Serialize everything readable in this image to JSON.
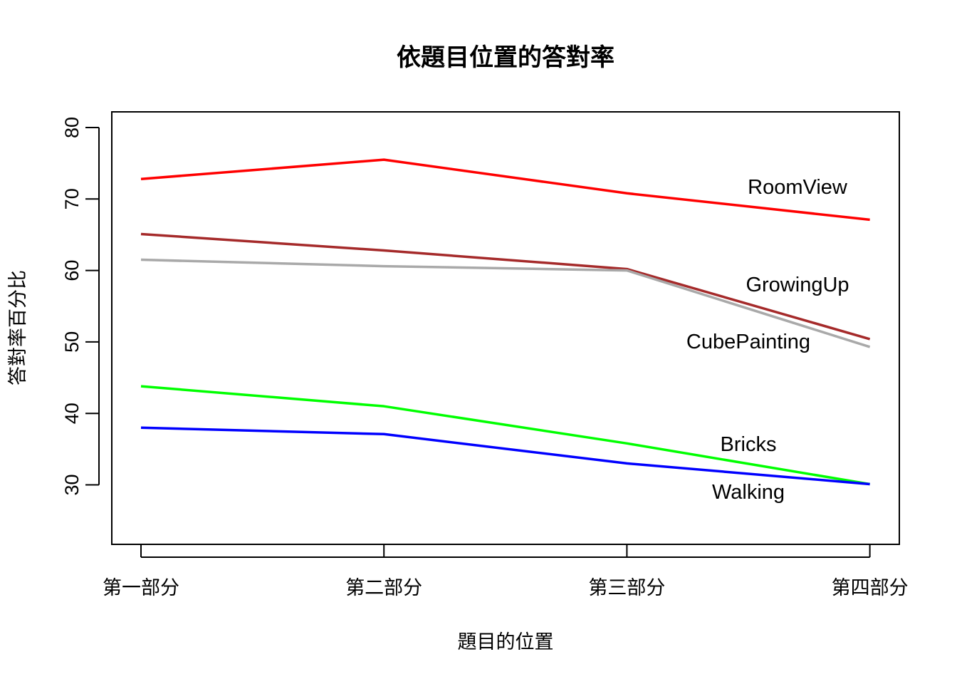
{
  "chart_data": {
    "type": "line",
    "title": "依題目位置的答對率",
    "xlabel": "題目的位置",
    "ylabel": "答對率百分比",
    "categories": [
      "第一部分",
      "第二部分",
      "第三部分",
      "第四部分"
    ],
    "ylim": [
      22,
      80
    ],
    "yticks": [
      30,
      40,
      50,
      60,
      70,
      80
    ],
    "grid": false,
    "legend": "none",
    "series": [
      {
        "name": "RoomView",
        "color": "#ff0000",
        "values": [
          72.8,
          75.5,
          70.8,
          67.1
        ]
      },
      {
        "name": "GrowingUp",
        "color": "#a52a2a",
        "values": [
          65.1,
          62.8,
          60.2,
          50.4
        ]
      },
      {
        "name": "CubePainting",
        "color": "#a9a9a9",
        "values": [
          61.5,
          60.6,
          60.0,
          49.3
        ]
      },
      {
        "name": "Bricks",
        "color": "#00ff00",
        "values": [
          43.8,
          41.0,
          35.8,
          30.1
        ]
      },
      {
        "name": "Walking",
        "color": "#0000ff",
        "values": [
          38.0,
          37.1,
          33.0,
          30.1
        ]
      }
    ]
  }
}
